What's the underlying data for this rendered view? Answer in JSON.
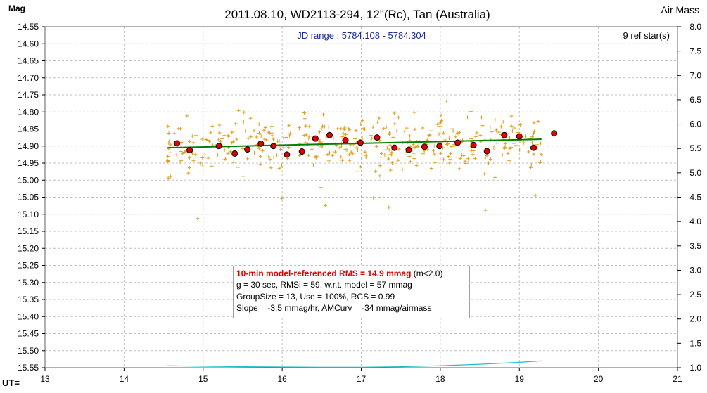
{
  "chart_data": {
    "type": "scatter",
    "title": "2011.08.10, WD2113-294, 12\"(Rc), Tan (Australia)",
    "subtitle": "JD range : 5784.108 - 5784.304",
    "ref_stars_label": "9 ref star(s)",
    "ylabel": "Mag",
    "y2label": "Air Mass",
    "xlabel": "UT=",
    "xlim": [
      13,
      21
    ],
    "ylim": [
      15.55,
      14.55
    ],
    "y2lim": [
      1.0,
      8.0
    ],
    "grid": true,
    "x_ticks": [
      "13",
      "14",
      "15",
      "16",
      "17",
      "18",
      "19",
      "20",
      "21"
    ],
    "y_ticks": [
      "14.55",
      "14.60",
      "14.65",
      "14.70",
      "14.75",
      "14.80",
      "14.85",
      "14.90",
      "14.95",
      "15.00",
      "15.05",
      "15.10",
      "15.15",
      "15.20",
      "15.25",
      "15.30",
      "15.35",
      "15.40",
      "15.45",
      "15.50",
      "15.55"
    ],
    "y2_ticks": [
      "1.0",
      "1.5",
      "2.0",
      "2.5",
      "3.0",
      "3.5",
      "4.0",
      "4.5",
      "5.0",
      "5.5",
      "6.0",
      "6.5",
      "7.0",
      "7.5",
      "8.0"
    ],
    "colors": {
      "raw": "#e0a020",
      "binned": "#e00000",
      "trend": "#008000",
      "airmass": "#20c0c8",
      "grid": "#c0c0c0"
    },
    "binned_points": {
      "x": [
        14.67,
        14.83,
        15.2,
        15.4,
        15.56,
        15.73,
        15.89,
        16.06,
        16.25,
        16.42,
        16.6,
        16.8,
        16.99,
        17.2,
        17.42,
        17.6,
        17.8,
        17.99,
        18.22,
        18.42,
        18.59,
        18.81,
        19.0,
        19.18,
        19.44
      ],
      "y": [
        14.892,
        14.912,
        14.9,
        14.922,
        14.91,
        14.893,
        14.9,
        14.925,
        14.916,
        14.878,
        14.868,
        14.883,
        14.89,
        14.875,
        14.905,
        14.911,
        14.902,
        14.9,
        14.89,
        14.897,
        14.915,
        14.868,
        14.872,
        14.905,
        14.863
      ]
    },
    "trend_line": {
      "x": [
        14.55,
        19.28
      ],
      "y": [
        14.905,
        14.88
      ]
    },
    "airmass_curve": {
      "x": [
        14.55,
        15.0,
        15.5,
        16.0,
        16.5,
        17.0,
        17.5,
        18.0,
        18.5,
        19.0,
        19.28
      ],
      "y": [
        1.04,
        1.03,
        1.02,
        1.015,
        1.01,
        1.01,
        1.02,
        1.04,
        1.07,
        1.11,
        1.14
      ]
    },
    "raw_scatter": {
      "n_points": 430,
      "x_range": [
        14.55,
        19.28
      ],
      "approx_mean": 14.895
    },
    "annotation": {
      "headline": "10-min model-referenced RMS = 14.9 mmag",
      "headline_note": " (m<2.0)",
      "line1": "g = 30 sec, RMSi = 59, w.r.t. model = 57 mmag",
      "line2": "GroupSize = 13, Use = 100%, RCS = 0.99",
      "line3": "Slope = -3.5 mmag/hr, AMCurv = -34 mmag/airmass"
    }
  }
}
